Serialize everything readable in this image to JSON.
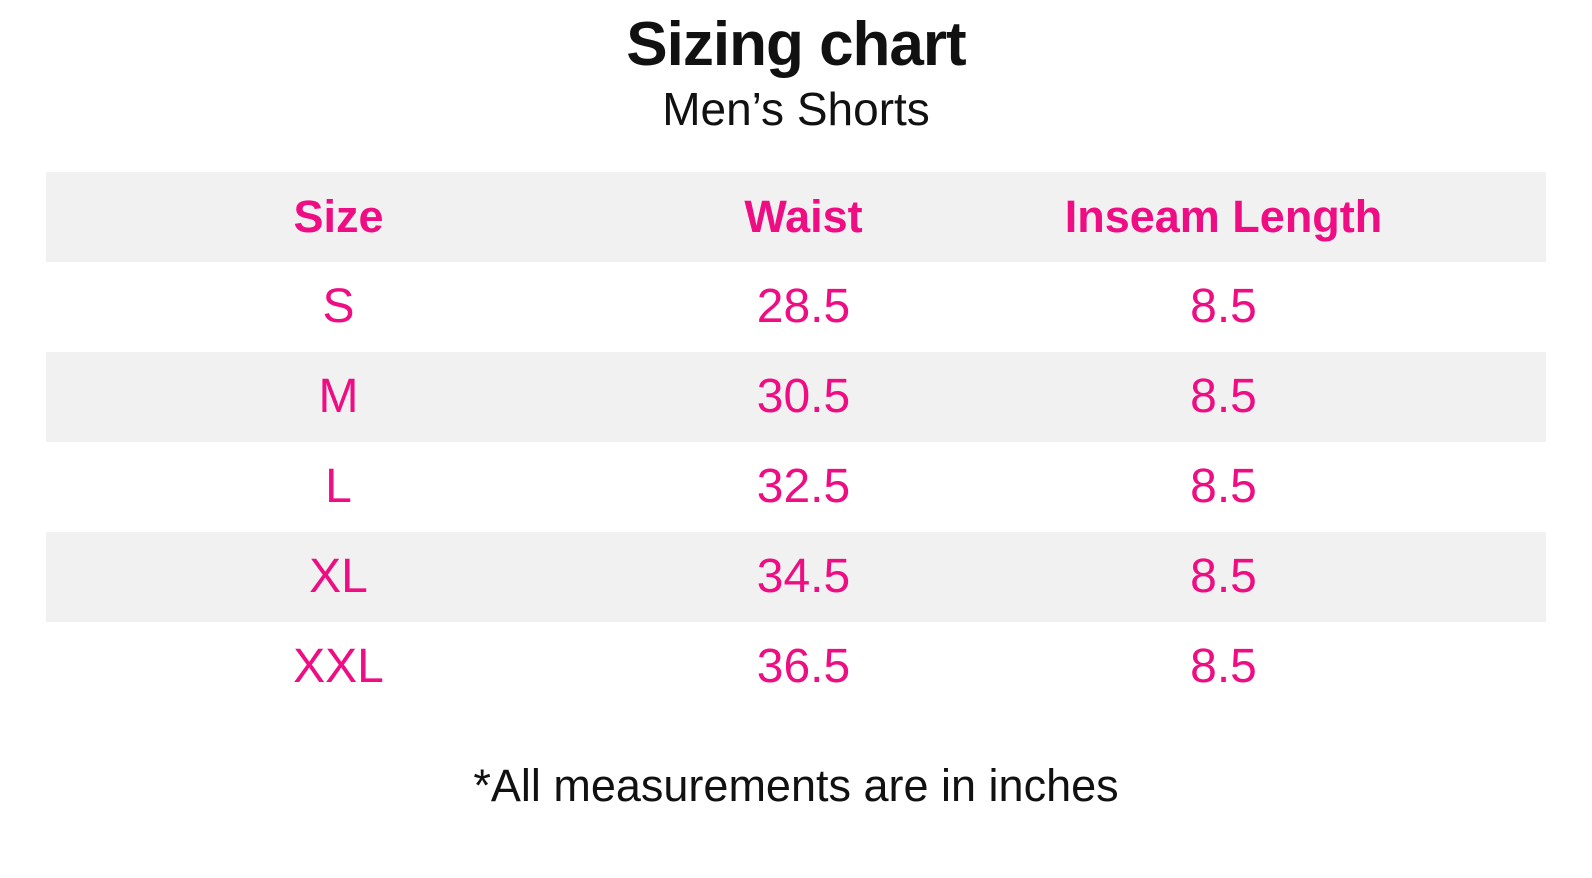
{
  "colors": {
    "accent_pink": "#ee0d82",
    "row_stripe_gray": "#f1f1f2",
    "text_black": "#111111"
  },
  "chart_data": {
    "type": "table",
    "title": "Sizing chart",
    "subtitle": "Men’s Shorts",
    "columns": [
      "Size",
      "Waist",
      "Inseam Length"
    ],
    "rows": [
      [
        "S",
        "28.5",
        "8.5"
      ],
      [
        "M",
        "30.5",
        "8.5"
      ],
      [
        "L",
        "32.5",
        "8.5"
      ],
      [
        "XL",
        "34.5",
        "8.5"
      ],
      [
        "XXL",
        "36.5",
        "8.5"
      ]
    ],
    "footnote": "*All measurements are in inches",
    "units": "inches",
    "layout_hints": {
      "header_row_striped": true,
      "striped_data_rows": [
        "M",
        "XL"
      ],
      "grid": "off"
    }
  }
}
